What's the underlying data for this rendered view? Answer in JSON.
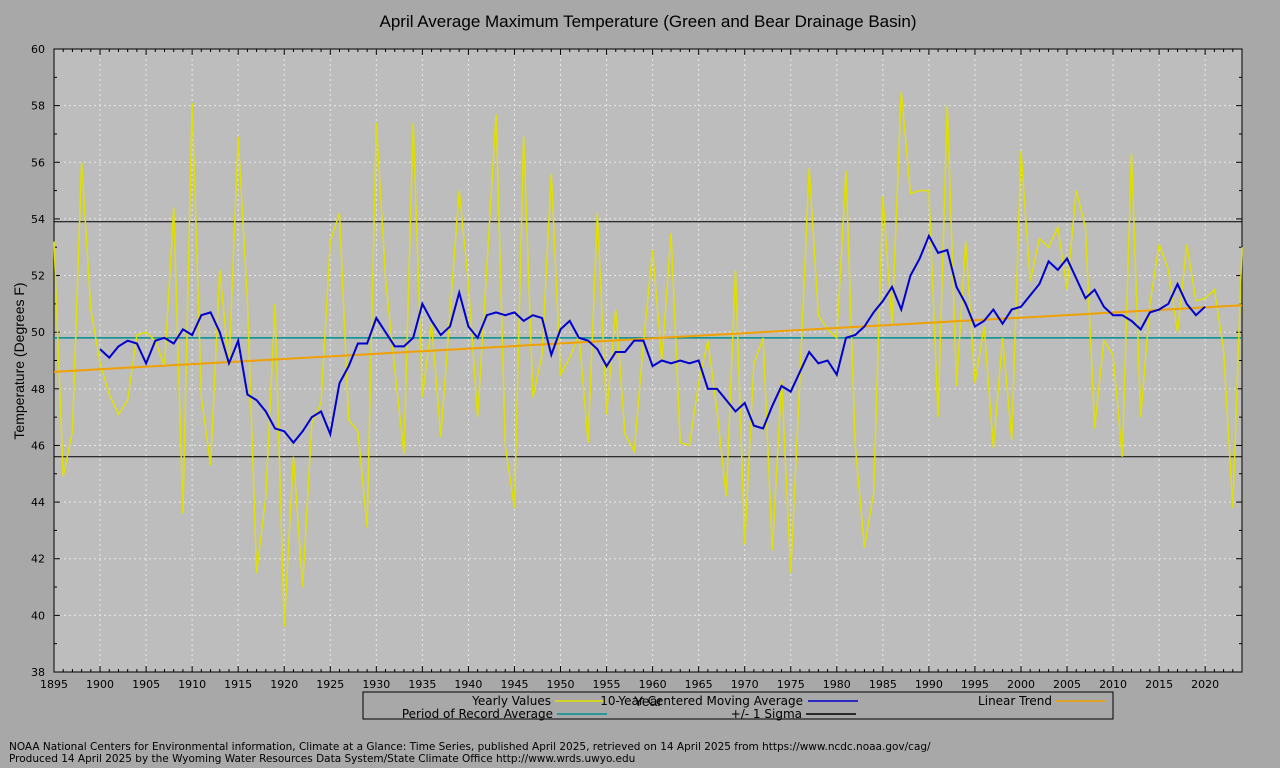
{
  "chart_data": {
    "type": "line",
    "title": "April Average Maximum Temperature (Green and Bear Drainage Basin)",
    "xlabel": "Year",
    "ylabel": "Temperature (Degrees F)",
    "xlim": [
      1895,
      2024
    ],
    "ylim": [
      38,
      60
    ],
    "x_ticks": [
      1895,
      1900,
      1905,
      1910,
      1915,
      1920,
      1925,
      1930,
      1935,
      1940,
      1945,
      1950,
      1955,
      1960,
      1965,
      1970,
      1975,
      1980,
      1985,
      1990,
      1995,
      2000,
      2005,
      2010,
      2015,
      2020
    ],
    "y_ticks": [
      38,
      40,
      42,
      44,
      46,
      48,
      50,
      52,
      54,
      56,
      58,
      60
    ],
    "grid": true,
    "legend_position": "bottom-center",
    "x_start_year": 1895,
    "series": [
      {
        "name": "Yearly Values",
        "color": "#e0e000",
        "values": [
          53.2,
          44.9,
          46.5,
          56.0,
          50.8,
          48.9,
          47.8,
          47.1,
          47.6,
          49.9,
          50.0,
          49.7,
          48.8,
          54.4,
          43.6,
          58.1,
          47.7,
          45.3,
          52.2,
          48.8,
          56.9,
          51.1,
          41.5,
          44.2,
          51.0,
          39.6,
          45.6,
          41.0,
          46.8,
          47.5,
          53.2,
          54.2,
          46.9,
          46.5,
          43.1,
          57.4,
          51.9,
          48.7,
          45.7,
          57.4,
          47.7,
          50.3,
          46.3,
          50.7,
          55.0,
          51.7,
          47.0,
          52.3,
          57.7,
          46.0,
          43.8,
          56.9,
          47.7,
          49.2,
          55.6,
          48.5,
          49.1,
          49.9,
          46.1,
          54.2,
          47.1,
          50.8,
          46.4,
          45.8,
          49.6,
          52.9,
          49.0,
          53.5,
          46.1,
          46.0,
          48.2,
          49.7,
          47.2,
          44.2,
          52.2,
          42.5,
          48.9,
          49.8,
          42.3,
          48.3,
          41.5,
          48.4,
          55.8,
          50.6,
          50.1,
          49.8,
          55.7,
          46.0,
          42.4,
          44.3,
          54.8,
          50.3,
          58.5,
          54.9,
          55.0,
          55.0,
          47.0,
          58.0,
          48.1,
          53.2,
          48.2,
          50.2,
          45.9,
          49.8,
          46.2,
          56.4,
          51.8,
          53.3,
          53.0,
          53.7,
          51.5,
          55.0,
          53.7,
          46.6,
          49.7,
          49.2,
          45.6,
          56.3,
          47.0,
          51.0,
          53.1,
          52.2,
          50.0,
          53.1,
          51.1,
          51.2,
          51.5,
          49.4,
          43.8,
          53.0
        ]
      },
      {
        "name": "10-Year Centered Moving Average",
        "color": "#0000cc",
        "x_start_year": 1900,
        "values": [
          49.4,
          49.1,
          49.5,
          49.7,
          49.6,
          48.9,
          49.7,
          49.8,
          49.6,
          50.1,
          49.9,
          50.6,
          50.7,
          50.0,
          48.9,
          49.7,
          47.8,
          47.6,
          47.2,
          46.6,
          46.5,
          46.1,
          46.5,
          47.0,
          47.2,
          46.4,
          48.2,
          48.8,
          49.6,
          49.6,
          50.5,
          50.0,
          49.5,
          49.5,
          49.8,
          51.0,
          50.4,
          49.9,
          50.2,
          51.4,
          50.2,
          49.8,
          50.6,
          50.7,
          50.6,
          50.7,
          50.4,
          50.6,
          50.5,
          49.2,
          50.1,
          50.4,
          49.8,
          49.7,
          49.4,
          48.8,
          49.3,
          49.3,
          49.7,
          49.7,
          48.8,
          49.0,
          48.9,
          49.0,
          48.9,
          49.0,
          48.0,
          48.0,
          47.6,
          47.2,
          47.5,
          46.7,
          46.6,
          47.4,
          48.1,
          47.9,
          48.6,
          49.3,
          48.9,
          49.0,
          48.5,
          49.8,
          49.9,
          50.2,
          50.7,
          51.1,
          51.6,
          50.8,
          52.0,
          52.6,
          53.4,
          52.8,
          52.9,
          51.6,
          51.0,
          50.2,
          50.4,
          50.8,
          50.3,
          50.8,
          50.9,
          51.3,
          51.7,
          52.5,
          52.2,
          52.6,
          51.9,
          51.2,
          51.5,
          50.9,
          50.6,
          50.6,
          50.4,
          50.1,
          50.7,
          50.8,
          51.0,
          51.7,
          51.0,
          50.6,
          50.9
        ]
      },
      {
        "name": "Linear Trend",
        "color": "#f0a000",
        "x": [
          1895,
          2024
        ],
        "values": [
          48.6,
          50.95
        ]
      },
      {
        "name": "Period of Record Average",
        "color": "#009090",
        "value": 49.8
      },
      {
        "name": "+/- 1 Sigma",
        "color": "#000000",
        "values": [
          45.6,
          53.9
        ]
      }
    ]
  },
  "credits": {
    "line1": "NOAA National Centers for Environmental information, Climate at a Glance: Time Series, published April 2025, retrieved on 14 April 2025 from https://www.ncdc.noaa.gov/cag/",
    "line2": "Produced 14 April 2025 by the Wyoming Water Resources Data System/State Climate Office http://www.wrds.uwyo.edu"
  }
}
